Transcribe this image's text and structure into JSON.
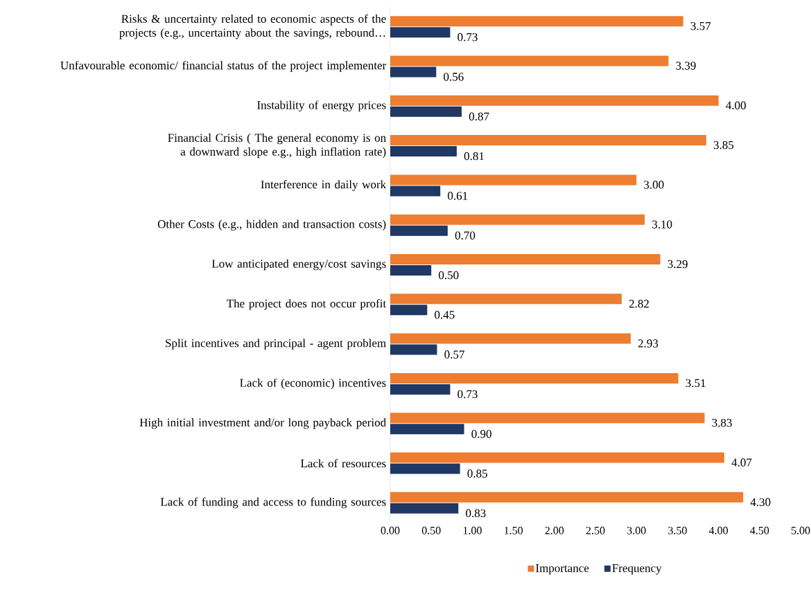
{
  "chart_data": {
    "type": "bar",
    "orientation": "horizontal",
    "categories": [
      "Risks & uncertainty related to economic aspects of the projects (e.g., uncertainty about the savings, rebound…",
      "Unfavourable economic/ financial status of the project implementer",
      "Instability of energy prices",
      "Financial Crisis ( The general economy is on a downward slope e.g., high inflation rate)",
      "Interference in daily work",
      "Other Costs (e.g., hidden and transaction costs)",
      "Low anticipated energy/cost savings",
      "The project does not occur profit",
      "Split incentives and principal - agent problem",
      "Lack of (economic) incentives",
      "High initial investment and/or long payback period",
      "Lack of resources",
      "Lack of funding and access to funding sources"
    ],
    "series": [
      {
        "name": "Importance",
        "color": "#ed7d31",
        "values": [
          3.57,
          3.39,
          4.0,
          3.85,
          3.0,
          3.1,
          3.29,
          2.82,
          2.93,
          3.51,
          3.83,
          4.07,
          4.3
        ],
        "value_labels": [
          "3.57",
          "3.39",
          "4.00",
          "3.85",
          "3.00",
          "3.10",
          "3.29",
          "2.82",
          "2.93",
          "3.51",
          "3.83",
          "4.07",
          "4.30"
        ]
      },
      {
        "name": "Frequency",
        "color": "#1f3864",
        "values": [
          0.73,
          0.56,
          0.87,
          0.81,
          0.61,
          0.7,
          0.5,
          0.45,
          0.57,
          0.73,
          0.9,
          0.85,
          0.83
        ],
        "value_labels": [
          "0.73",
          "0.56",
          "0.87",
          "0.81",
          "0.61",
          "0.70",
          "0.50",
          "0.45",
          "0.57",
          "0.73",
          "0.90",
          "0.85",
          "0.83"
        ]
      }
    ],
    "xlim": [
      0,
      5
    ],
    "xticks": [
      {
        "value": 0,
        "label": "0.00"
      },
      {
        "value": 0.5,
        "label": "0.50"
      },
      {
        "value": 1,
        "label": "1.00"
      },
      {
        "value": 1.5,
        "label": "1.50"
      },
      {
        "value": 2,
        "label": "2.00"
      },
      {
        "value": 2.5,
        "label": "2.50"
      },
      {
        "value": 3,
        "label": "3.00"
      },
      {
        "value": 3.5,
        "label": "3.50"
      },
      {
        "value": 4,
        "label": "4.00"
      },
      {
        "value": 4.5,
        "label": "4.50"
      },
      {
        "value": 5,
        "label": "5.00"
      }
    ],
    "legend": "bottom"
  }
}
